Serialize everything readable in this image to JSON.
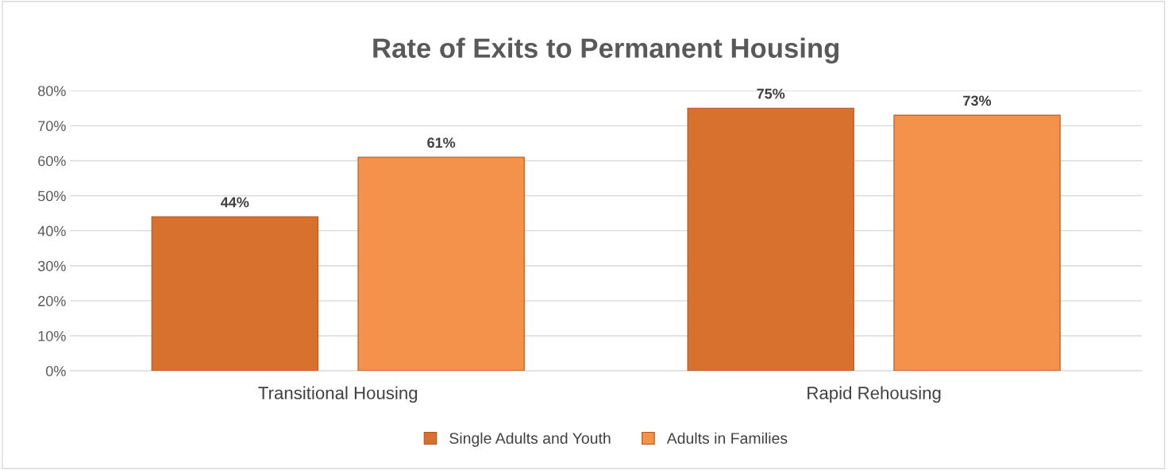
{
  "chart_data": {
    "type": "bar",
    "title": "Rate of Exits to Permanent Housing",
    "categories": [
      "Transitional Housing",
      "Rapid Rehousing"
    ],
    "series": [
      {
        "name": "Single Adults and Youth",
        "color": "#d9712e",
        "values": [
          44,
          75
        ]
      },
      {
        "name": "Adults in Families",
        "color": "#f4914a",
        "values": [
          61,
          73
        ]
      }
    ],
    "value_labels": [
      [
        "44%",
        "75%"
      ],
      [
        "61%",
        "73%"
      ]
    ],
    "ylim": [
      0,
      80
    ],
    "yticks": [
      {
        "value": 0,
        "label": "0%"
      },
      {
        "value": 10,
        "label": "10%"
      },
      {
        "value": 20,
        "label": "20%"
      },
      {
        "value": 30,
        "label": "30%"
      },
      {
        "value": 40,
        "label": "40%"
      },
      {
        "value": 50,
        "label": "50%"
      },
      {
        "value": 60,
        "label": "60%"
      },
      {
        "value": 70,
        "label": "70%"
      },
      {
        "value": 80,
        "label": "80%"
      }
    ],
    "grid": "y",
    "legend": "bottom"
  }
}
